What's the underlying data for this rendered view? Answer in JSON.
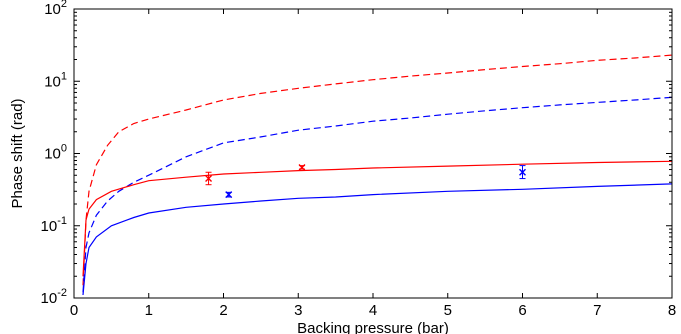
{
  "chart_data": {
    "type": "line",
    "xlabel": "Backing pressure (bar)",
    "ylabel": "Phase shift (rad)",
    "xlim": [
      0,
      8
    ],
    "ylim": [
      0.01,
      100
    ],
    "yscale": "log",
    "grid": false,
    "x_ticks": [
      "0",
      "1",
      "2",
      "3",
      "4",
      "5",
      "6",
      "7",
      "8"
    ],
    "y_ticks": [
      {
        "base": "10",
        "exp": "-2"
      },
      {
        "base": "10",
        "exp": "-1"
      },
      {
        "base": "10",
        "exp": "0"
      },
      {
        "base": "10",
        "exp": "1"
      },
      {
        "base": "10",
        "exp": "2"
      }
    ],
    "series": [
      {
        "color": "#ff0000",
        "style": "dashed",
        "x": [
          0.12,
          0.16,
          0.2,
          0.3,
          0.45,
          0.6,
          0.8,
          1.0,
          1.5,
          2.0,
          2.5,
          3.0,
          3.5,
          4.0,
          4.5,
          5.0,
          5.5,
          6.0,
          6.5,
          7.0,
          7.5,
          8.0
        ],
        "y": [
          0.015,
          0.12,
          0.3,
          0.7,
          1.3,
          2.0,
          2.6,
          3.0,
          4.0,
          5.5,
          6.8,
          8.0,
          9.2,
          10.5,
          11.8,
          13.0,
          14.5,
          16.0,
          17.5,
          19.5,
          21.0,
          23.0
        ]
      },
      {
        "color": "#0000ff",
        "style": "dashed",
        "x": [
          0.12,
          0.16,
          0.2,
          0.3,
          0.45,
          0.6,
          0.8,
          1.0,
          1.5,
          2.0,
          2.5,
          3.0,
          3.5,
          4.0,
          4.5,
          5.0,
          5.5,
          6.0,
          6.5,
          7.0,
          7.5,
          8.0
        ],
        "y": [
          0.012,
          0.05,
          0.08,
          0.14,
          0.22,
          0.3,
          0.4,
          0.5,
          0.9,
          1.4,
          1.7,
          2.1,
          2.4,
          2.8,
          3.1,
          3.5,
          3.9,
          4.3,
          4.7,
          5.1,
          5.5,
          6.0
        ]
      },
      {
        "color": "#ff0000",
        "style": "solid",
        "x": [
          0.12,
          0.16,
          0.2,
          0.3,
          0.5,
          0.8,
          1.0,
          1.5,
          2.0,
          2.5,
          3.0,
          3.5,
          4.0,
          5.0,
          6.0,
          7.0,
          8.0
        ],
        "y": [
          0.02,
          0.12,
          0.17,
          0.23,
          0.3,
          0.37,
          0.42,
          0.47,
          0.52,
          0.55,
          0.58,
          0.6,
          0.63,
          0.67,
          0.71,
          0.75,
          0.78
        ]
      },
      {
        "color": "#0000ff",
        "style": "solid",
        "x": [
          0.12,
          0.16,
          0.2,
          0.3,
          0.5,
          0.8,
          1.0,
          1.5,
          2.0,
          2.5,
          3.0,
          3.5,
          4.0,
          5.0,
          6.0,
          7.0,
          8.0
        ],
        "y": [
          0.011,
          0.03,
          0.05,
          0.07,
          0.1,
          0.13,
          0.15,
          0.18,
          0.2,
          0.22,
          0.24,
          0.25,
          0.27,
          0.3,
          0.32,
          0.35,
          0.38
        ]
      }
    ],
    "points": [
      {
        "color": "#ff0000",
        "x": 1.8,
        "y": 0.45,
        "ylow": 0.37,
        "yhigh": 0.55
      },
      {
        "color": "#ff0000",
        "x": 3.05,
        "y": 0.64,
        "ylow": 0.61,
        "yhigh": 0.68
      },
      {
        "color": "#0000ff",
        "x": 2.07,
        "y": 0.27,
        "ylow": 0.25,
        "yhigh": 0.29
      },
      {
        "color": "#0000ff",
        "x": 6.0,
        "y": 0.55,
        "ylow": 0.45,
        "yhigh": 0.68
      }
    ]
  }
}
